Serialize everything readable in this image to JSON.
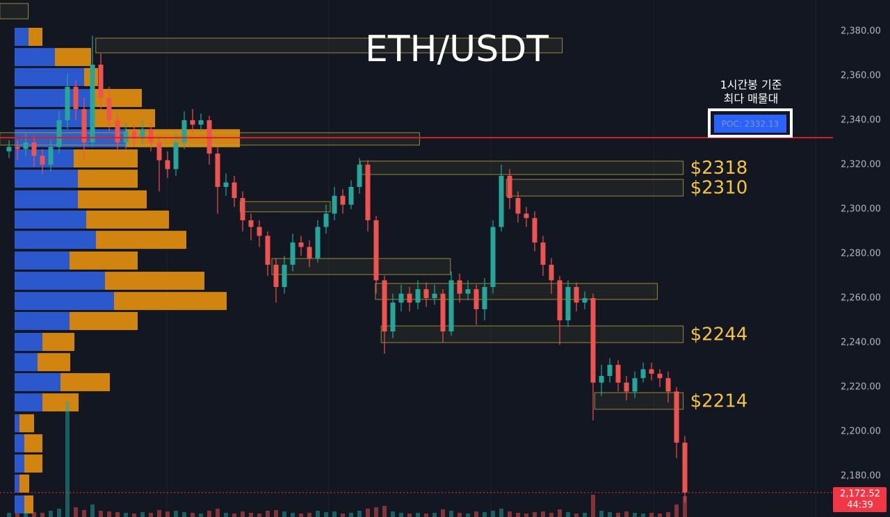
{
  "chart_data": {
    "type": "candlestick",
    "title": "ETH/USDT",
    "ylim": [
      2161.56,
      2394.06
    ],
    "yticks": [
      {
        "value": 2180,
        "label": "2,180.00"
      },
      {
        "value": 2200,
        "label": "2,200.00"
      },
      {
        "value": 2220,
        "label": "2,220.00"
      },
      {
        "value": 2240,
        "label": "2,240.00"
      },
      {
        "value": 2260,
        "label": "2,260.00"
      },
      {
        "value": 2280,
        "label": "2,280.00"
      },
      {
        "value": 2300,
        "label": "2,300.00"
      },
      {
        "value": 2320,
        "label": "2,320.00"
      },
      {
        "value": 2340,
        "label": "2,340.00"
      },
      {
        "value": 2360,
        "label": "2,360.00"
      },
      {
        "value": 2380,
        "label": "2,380.00"
      }
    ],
    "up_color": "#26a69a",
    "down_color": "#ef5350",
    "open": [
      2326,
      2328,
      2327,
      2330,
      2324,
      2320,
      2328,
      2340,
      2355,
      2345,
      2330,
      2365,
      2350,
      2340,
      2330,
      2335,
      2332,
      2336,
      2330,
      2322,
      2318,
      2330,
      2340,
      2338,
      2340,
      2325,
      2310,
      2312,
      2305,
      2295,
      2292,
      2288,
      2275,
      2265,
      2275,
      2285,
      2283,
      2278,
      2292,
      2298,
      2306,
      2302,
      2310,
      2320,
      2295,
      2268,
      2245,
      2258,
      2262,
      2258,
      2264,
      2260,
      2262,
      2245,
      2268,
      2262,
      2264,
      2255,
      2265,
      2292,
      2315,
      2305,
      2298,
      2296,
      2285,
      2275,
      2268,
      2250,
      2265,
      2258,
      2260,
      2222,
      2225,
      2230,
      2222,
      2218,
      2224,
      2228,
      2226,
      2224,
      2218,
      2195
    ],
    "high": [
      2331,
      2331,
      2334,
      2333,
      2327,
      2331,
      2344,
      2361,
      2358,
      2350,
      2378,
      2370,
      2355,
      2343,
      2339,
      2338,
      2340,
      2339,
      2333,
      2326,
      2334,
      2344,
      2345,
      2343,
      2342,
      2328,
      2316,
      2315,
      2308,
      2298,
      2295,
      2290,
      2278,
      2279,
      2289,
      2288,
      2286,
      2295,
      2302,
      2310,
      2309,
      2313,
      2323,
      2322,
      2297,
      2270,
      2262,
      2266,
      2265,
      2268,
      2267,
      2266,
      2264,
      2272,
      2271,
      2268,
      2266,
      2269,
      2295,
      2320,
      2318,
      2308,
      2301,
      2299,
      2288,
      2278,
      2270,
      2268,
      2267,
      2263,
      2262,
      2230,
      2233,
      2232,
      2225,
      2227,
      2231,
      2231,
      2228,
      2227,
      2220,
      2198
    ],
    "low": [
      2323,
      2322,
      2324,
      2319,
      2316,
      2317,
      2325,
      2336,
      2340,
      2322,
      2328,
      2345,
      2335,
      2326,
      2327,
      2328,
      2329,
      2326,
      2308,
      2314,
      2315,
      2327,
      2334,
      2335,
      2320,
      2298,
      2306,
      2301,
      2290,
      2286,
      2283,
      2270,
      2258,
      2262,
      2272,
      2279,
      2274,
      2276,
      2289,
      2295,
      2298,
      2300,
      2307,
      2290,
      2262,
      2235,
      2242,
      2254,
      2254,
      2255,
      2256,
      2257,
      2240,
      2243,
      2258,
      2259,
      2248,
      2250,
      2262,
      2290,
      2300,
      2294,
      2292,
      2281,
      2270,
      2262,
      2239,
      2247,
      2254,
      2255,
      2205,
      2216,
      2222,
      2218,
      2214,
      2215,
      2222,
      2223,
      2220,
      2213,
      2188,
      2168
    ],
    "close": [
      2328,
      2327,
      2330,
      2324,
      2320,
      2328,
      2340,
      2355,
      2345,
      2330,
      2365,
      2350,
      2340,
      2330,
      2335,
      2332,
      2336,
      2330,
      2322,
      2318,
      2330,
      2340,
      2338,
      2340,
      2325,
      2310,
      2312,
      2305,
      2295,
      2292,
      2288,
      2275,
      2265,
      2275,
      2285,
      2283,
      2278,
      2292,
      2298,
      2306,
      2302,
      2310,
      2320,
      2295,
      2268,
      2245,
      2258,
      2262,
      2258,
      2264,
      2260,
      2262,
      2245,
      2268,
      2262,
      2264,
      2255,
      2265,
      2292,
      2315,
      2305,
      2298,
      2296,
      2285,
      2275,
      2268,
      2250,
      2265,
      2258,
      2260,
      2222,
      2225,
      2230,
      2222,
      2218,
      2224,
      2228,
      2226,
      2224,
      2218,
      2195,
      2172.52
    ],
    "volume": [
      6,
      5,
      8,
      7,
      6,
      9,
      12,
      166,
      14,
      10,
      18,
      9,
      8,
      7,
      6,
      5,
      7,
      6,
      10,
      8,
      9,
      7,
      6,
      5,
      9,
      12,
      6,
      5,
      8,
      6,
      5,
      9,
      10,
      8,
      6,
      5,
      6,
      9,
      7,
      8,
      5,
      6,
      9,
      12,
      14,
      16,
      8,
      6,
      5,
      6,
      5,
      6,
      11,
      9,
      6,
      5,
      8,
      7,
      9,
      12,
      8,
      6,
      5,
      7,
      8,
      6,
      11,
      7,
      5,
      6,
      32,
      9,
      7,
      6,
      8,
      6,
      5,
      6,
      5,
      7,
      18,
      30
    ],
    "volume_profile": {
      "buy_color": "#2f5fe0",
      "sell_color": "#e8900f",
      "prices": [
        2377.5,
        2368.4,
        2359.4,
        2350,
        2340.9,
        2331.9,
        2322.8,
        2313.7,
        2304.4,
        2295.3,
        2286.2,
        2276.9,
        2267.8,
        2258.7,
        2249.7,
        2240.3,
        2231.2,
        2222.2,
        2213.1,
        2203.7,
        2194.7,
        2185.6,
        2176.6,
        2167.2
      ],
      "buy": [
        20,
        58,
        100,
        110,
        115,
        160,
        85,
        91,
        91,
        103,
        117,
        79,
        130,
        143,
        79,
        40,
        33,
        66,
        40,
        7,
        14,
        14,
        7,
        14
      ],
      "sell": [
        20,
        52,
        20,
        73,
        87,
        164,
        92,
        86,
        99,
        119,
        130,
        98,
        143,
        162,
        98,
        46,
        47,
        71,
        52,
        21,
        26,
        26,
        14,
        13
      ]
    },
    "zone_color": "#b8a63e",
    "zone_label_color": "#f5c542",
    "zones": [
      {
        "top": 2392.5,
        "bottom": 2385.6,
        "start": -1.1,
        "end": 2.3
      },
      {
        "top": 2376.9,
        "bottom": 2370.3,
        "start": 10.4,
        "end": 66.3
      },
      {
        "top": 2334.4,
        "bottom": 2328.8,
        "start": -1.1,
        "end": 49.2
      },
      {
        "top": 2321.6,
        "bottom": 2315.6,
        "start": 42.1,
        "end": 80.8,
        "label": "$2318"
      },
      {
        "top": 2313.4,
        "bottom": 2305.9,
        "start": 59.6,
        "end": 80.8,
        "label": "$2310"
      },
      {
        "top": 2303.4,
        "bottom": 2298.8,
        "start": 27.7,
        "end": 38.5
      },
      {
        "top": 2277.8,
        "bottom": 2270.6,
        "start": 31.5,
        "end": 52.9
      },
      {
        "top": 2266.6,
        "bottom": 2259.4,
        "start": 43.9,
        "end": 77.7
      },
      {
        "top": 2247.5,
        "bottom": 2240,
        "start": 44.6,
        "end": 80.8,
        "label": "$2244"
      },
      {
        "top": 2217.5,
        "bottom": 2210,
        "start": 70.2,
        "end": 80.8,
        "label": "$2214"
      }
    ],
    "poc": {
      "value": 2332.13,
      "label": "POC: 2332.13",
      "note": [
        "1시간봉 기준",
        "최다 매물대"
      ],
      "color": "#d81f26"
    },
    "last_price": {
      "value": 2172.52,
      "label": "2,172.52",
      "countdown": "44:39",
      "color": "#f23645"
    }
  }
}
